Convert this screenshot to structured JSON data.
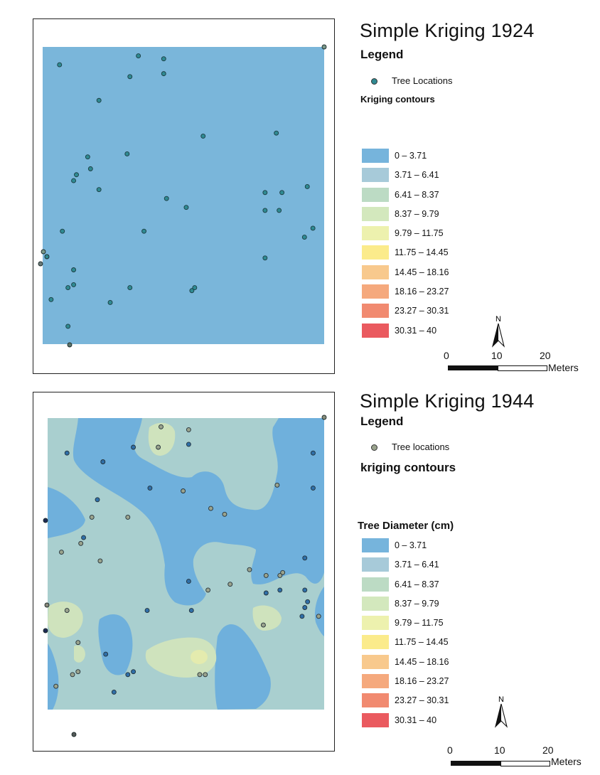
{
  "colors": {
    "class_colors": [
      "#76b4dc",
      "#a7cad9",
      "#bcdbc4",
      "#d3e8bd",
      "#edf1ae",
      "#fbeb8b",
      "#f8c98d",
      "#f5a97d",
      "#f18a70",
      "#ea5a5f"
    ],
    "map1_fill": "#7ab6da",
    "map2_base": "#a9cfcf",
    "map2_low": "#6fb0dc",
    "map2_mid": "#cfe3bd",
    "map2_high": "#e4ebae",
    "point_1924": "#2f8a92",
    "point_1944_light": "#9aa38d",
    "point_1944_dark": "#2f6fa8"
  },
  "class_breaks": [
    "0 – 3.71",
    "3.71 – 6.41",
    "6.41 – 8.37",
    "8.37 – 9.79",
    "9.79 – 11.75",
    "11.75 – 14.45",
    "14.45 – 18.16",
    "18.16 – 23.27",
    "23.27 – 30.31",
    "30.31 – 40"
  ],
  "map1924": {
    "title": "Simple Kriging 1924",
    "legend_label": "Legend",
    "points_label": "Tree Locations",
    "contours_label": "Kriging contours",
    "north_label": "N",
    "scale_ticks": [
      "0",
      "10",
      "20"
    ],
    "scale_unit": "Meters",
    "points": [
      [
        0.06,
        0.06
      ],
      [
        0.34,
        0.03
      ],
      [
        0.43,
        0.04
      ],
      [
        0.31,
        0.1
      ],
      [
        0.43,
        0.09
      ],
      [
        0.2,
        0.18
      ],
      [
        0.83,
        0.29
      ],
      [
        0.57,
        0.3
      ],
      [
        0.3,
        0.36
      ],
      [
        0.16,
        0.37
      ],
      [
        0.17,
        0.41
      ],
      [
        0.12,
        0.43
      ],
      [
        0.11,
        0.45
      ],
      [
        0.2,
        0.48
      ],
      [
        0.94,
        0.47
      ],
      [
        0.79,
        0.49
      ],
      [
        0.85,
        0.49
      ],
      [
        0.44,
        0.51
      ],
      [
        0.51,
        0.54
      ],
      [
        0.79,
        0.55
      ],
      [
        0.84,
        0.55
      ],
      [
        0.96,
        0.61
      ],
      [
        0.07,
        0.62
      ],
      [
        0.36,
        0.62
      ],
      [
        0.93,
        0.64
      ],
      [
        0.79,
        0.71
      ],
      [
        0.11,
        0.75
      ],
      [
        0.11,
        0.8
      ],
      [
        0.09,
        0.81
      ],
      [
        0.31,
        0.81
      ],
      [
        0.53,
        0.82
      ],
      [
        0.54,
        0.81
      ],
      [
        0.03,
        0.85
      ],
      [
        0.24,
        0.86
      ],
      [
        0.09,
        0.94
      ]
    ]
  },
  "map1944": {
    "title": "Simple Kriging 1944",
    "legend_label": "Legend",
    "points_label": "Tree locations",
    "contours_label": "kriging contours",
    "classes_title": "Tree Diameter (cm)",
    "north_label": "N",
    "scale_ticks": [
      "0",
      "10",
      "20"
    ],
    "scale_unit": "Meters",
    "points": [
      [
        0.41,
        0.03,
        1
      ],
      [
        0.51,
        0.04,
        1
      ],
      [
        0.4,
        0.1,
        1
      ],
      [
        0.07,
        0.12,
        0
      ],
      [
        0.2,
        0.15,
        0
      ],
      [
        0.31,
        0.1,
        0
      ],
      [
        0.51,
        0.09,
        0
      ],
      [
        0.96,
        0.12,
        0
      ],
      [
        0.37,
        0.24,
        0
      ],
      [
        0.49,
        0.25,
        1
      ],
      [
        0.83,
        0.23,
        1
      ],
      [
        0.96,
        0.24,
        0
      ],
      [
        0.18,
        0.28,
        0
      ],
      [
        0.59,
        0.31,
        1
      ],
      [
        0.64,
        0.33,
        1
      ],
      [
        0.16,
        0.34,
        1
      ],
      [
        0.29,
        0.34,
        1
      ],
      [
        0.13,
        0.41,
        0
      ],
      [
        0.12,
        0.43,
        1
      ],
      [
        0.05,
        0.46,
        1
      ],
      [
        0.19,
        0.49,
        1
      ],
      [
        0.93,
        0.48,
        0
      ],
      [
        0.73,
        0.52,
        1
      ],
      [
        0.79,
        0.54,
        1
      ],
      [
        0.85,
        0.53,
        1
      ],
      [
        0.84,
        0.54,
        1
      ],
      [
        0.51,
        0.56,
        0
      ],
      [
        0.66,
        0.57,
        1
      ],
      [
        0.58,
        0.59,
        1
      ],
      [
        0.79,
        0.6,
        0
      ],
      [
        0.84,
        0.59,
        0
      ],
      [
        0.93,
        0.59,
        0
      ],
      [
        0.94,
        0.63,
        0
      ],
      [
        0.93,
        0.65,
        0
      ],
      [
        0.98,
        0.68,
        1
      ],
      [
        0.07,
        0.66,
        1
      ],
      [
        0.36,
        0.66,
        0
      ],
      [
        0.52,
        0.66,
        0
      ],
      [
        0.92,
        0.68,
        0
      ],
      [
        0.78,
        0.71,
        1
      ],
      [
        0.11,
        0.77,
        1
      ],
      [
        0.21,
        0.81,
        0
      ],
      [
        0.11,
        0.87,
        1
      ],
      [
        0.09,
        0.88,
        1
      ],
      [
        0.29,
        0.88,
        0
      ],
      [
        0.31,
        0.87,
        0
      ],
      [
        0.55,
        0.88,
        1
      ],
      [
        0.57,
        0.88,
        1
      ],
      [
        0.03,
        0.92,
        1
      ],
      [
        0.24,
        0.94,
        0
      ]
    ],
    "edge_points": [
      [
        0.0,
        0.37
      ],
      [
        0.0,
        0.73
      ],
      [
        -0.01,
        0.78
      ]
    ]
  }
}
